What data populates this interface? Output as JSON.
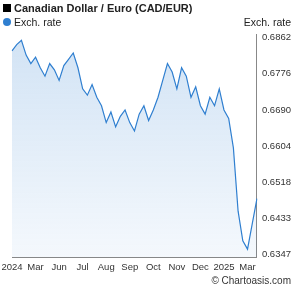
{
  "chart_data": {
    "type": "line",
    "title": "Canadian Dollar / Euro (CAD/EUR)",
    "ylabel": "Exch. rate",
    "annotation": "© Chartoasis.com",
    "categories": [
      "2024",
      null,
      null,
      null,
      null,
      "Mar",
      null,
      null,
      null,
      null,
      "Jun",
      null,
      null,
      null,
      null,
      "Jul",
      null,
      null,
      null,
      null,
      "Aug",
      null,
      null,
      null,
      null,
      "Sep",
      null,
      null,
      null,
      null,
      "Oct",
      null,
      null,
      null,
      null,
      "Nov",
      null,
      null,
      null,
      null,
      "Dec",
      null,
      null,
      null,
      null,
      "2025",
      null,
      null,
      null,
      null,
      "Mar",
      null,
      null
    ],
    "series": [
      {
        "name": "Exch. rate",
        "color": "#2f7fd0",
        "values": [
          0.683,
          0.6845,
          0.6855,
          0.682,
          0.68,
          0.6815,
          0.679,
          0.677,
          0.68,
          0.6785,
          0.676,
          0.6795,
          0.681,
          0.6825,
          0.679,
          0.674,
          0.6725,
          0.675,
          0.672,
          0.67,
          0.666,
          0.6685,
          0.665,
          0.6675,
          0.669,
          0.666,
          0.664,
          0.668,
          0.67,
          0.6665,
          0.669,
          0.672,
          0.676,
          0.68,
          0.678,
          0.674,
          0.679,
          0.677,
          0.672,
          0.6745,
          0.67,
          0.668,
          0.672,
          0.67,
          0.674,
          0.669,
          0.667,
          0.66,
          0.645,
          0.638,
          0.636,
          0.642,
          0.648
        ]
      }
    ],
    "ylim": [
      0.634,
      0.687
    ],
    "yticks": [
      0.6347,
      0.6433,
      0.6518,
      0.6604,
      {
        "value": 0.669,
        "label": "0.6690"
      },
      0.6776,
      0.6862
    ],
    "grid": false
  }
}
